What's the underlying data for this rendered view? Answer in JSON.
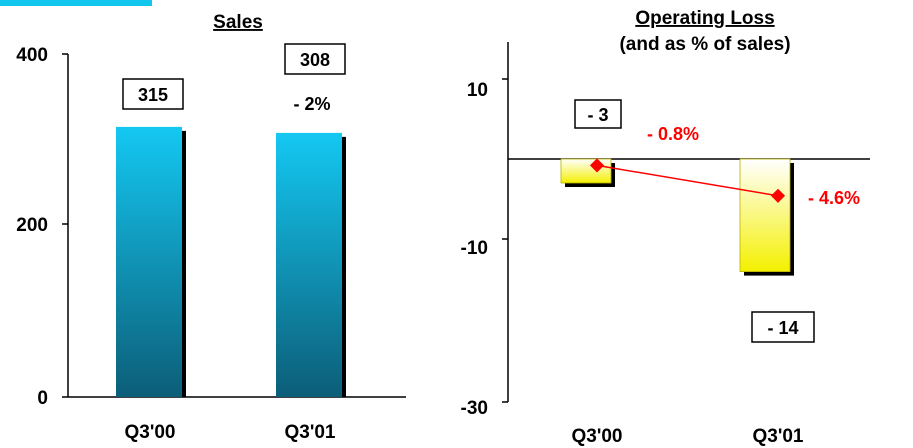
{
  "colors": {
    "accent_strip": "#12c6ee",
    "sales_bar_top": "#14c8f2",
    "sales_bar_bottom": "#0c5e78",
    "loss_bar_top": "#f4f000",
    "loss_bar_bottom": "#ffffff",
    "percent_series": "#ff0000",
    "text": "#000000"
  },
  "chart_data": [
    {
      "type": "bar",
      "title": "Sales",
      "categories": [
        "Q3'00",
        "Q3'01"
      ],
      "values": [
        315,
        308
      ],
      "value_labels": [
        "315",
        "308"
      ],
      "change_label": "- 2%",
      "ylim": [
        0,
        400
      ],
      "yticks": [
        "400",
        "200",
        "0"
      ],
      "xlabel": "",
      "ylabel": "",
      "grid": false
    },
    {
      "type": "bar",
      "title": "Operating Loss",
      "subtitle": "(and as % of sales)",
      "categories": [
        "Q3'00",
        "Q3'01"
      ],
      "values": [
        -3,
        -14
      ],
      "value_labels": [
        "- 3",
        "- 14"
      ],
      "percent_of_sales": [
        -0.8,
        -4.6
      ],
      "percent_labels": [
        "- 0.8%",
        "- 4.6%"
      ],
      "ylim": [
        -30,
        15
      ],
      "yticks": [
        "10",
        "-10",
        "-30"
      ],
      "xlabel": "",
      "ylabel": "",
      "grid": false
    }
  ]
}
